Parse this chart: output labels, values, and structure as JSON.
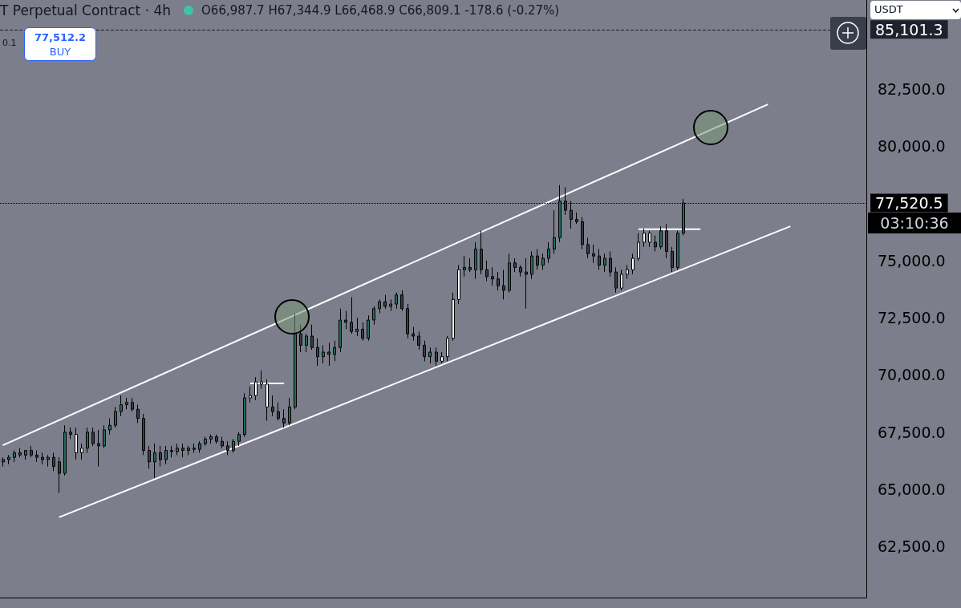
{
  "chart_data": {
    "type": "candlestick",
    "title": "T Perpetual Contract · 4h",
    "annotations": [
      "O66,987.7 H67,344.9 L66,468.9 C66,809.1 -178.6 (-0.27%)",
      "77,512.2",
      "BUY",
      "0.1",
      "USDT",
      "03:10:36"
    ],
    "categories": [
      null,
      null,
      null,
      null,
      null,
      null,
      null,
      null,
      null,
      null,
      null,
      null,
      null,
      null,
      null,
      null,
      null,
      null,
      null,
      null,
      null,
      null,
      null,
      null,
      null,
      null,
      null,
      null,
      null,
      null,
      null,
      null,
      null,
      null,
      null,
      null,
      null,
      null,
      null,
      null,
      null,
      null,
      null,
      null,
      null,
      null,
      null,
      null,
      null,
      null,
      null,
      null,
      null,
      null,
      null,
      null,
      null,
      null,
      null,
      null,
      null,
      null,
      null,
      null,
      null,
      null,
      null,
      null,
      null,
      null,
      null,
      null,
      null,
      null,
      null,
      null,
      null,
      null,
      null,
      null,
      null,
      null,
      null,
      null,
      null,
      null,
      null,
      null,
      null,
      null,
      null,
      null,
      null,
      null,
      null,
      null,
      null,
      null,
      null,
      null,
      null,
      null,
      null,
      null,
      null,
      null,
      null,
      null,
      null,
      null,
      null,
      null,
      null,
      null,
      null,
      null,
      null,
      null,
      null,
      null,
      null,
      null,
      null,
      null,
      null,
      null,
      null,
      null,
      null,
      null,
      null,
      null,
      null,
      null,
      null,
      null,
      null,
      null,
      null,
      null,
      null,
      null,
      null,
      null,
      null,
      null,
      null,
      null,
      null,
      null,
      null,
      null,
      null,
      null
    ],
    "ohlc": [
      [
        66200,
        66400,
        66000,
        66300
      ],
      [
        66300,
        66500,
        66100,
        66400
      ],
      [
        66400,
        66700,
        66200,
        66600
      ],
      [
        66600,
        66800,
        66400,
        66500
      ],
      [
        66500,
        66700,
        66300,
        66700
      ],
      [
        66700,
        66900,
        66400,
        66500
      ],
      [
        66500,
        66700,
        66200,
        66400
      ],
      [
        66400,
        66600,
        66100,
        66300
      ],
      [
        66300,
        66500,
        66000,
        66400
      ],
      [
        66400,
        66600,
        65800,
        66000
      ],
      [
        66200,
        66400,
        64850,
        65700
      ],
      [
        65700,
        67800,
        65600,
        67500
      ],
      [
        67500,
        67700,
        67200,
        67400
      ],
      [
        67400,
        67700,
        66300,
        66600
      ],
      [
        66600,
        67000,
        66300,
        66800
      ],
      [
        66800,
        67700,
        66600,
        67500
      ],
      [
        67500,
        67700,
        66900,
        67000
      ],
      [
        67000,
        67600,
        66000,
        66900
      ],
      [
        66900,
        67800,
        66800,
        67600
      ],
      [
        67600,
        68100,
        67400,
        67800
      ],
      [
        67800,
        68600,
        67700,
        68400
      ],
      [
        68400,
        69100,
        68200,
        68700
      ],
      [
        68700,
        69000,
        68500,
        68800
      ],
      [
        68800,
        69000,
        68400,
        68500
      ],
      [
        68500,
        68700,
        67900,
        68100
      ],
      [
        68100,
        68300,
        66500,
        66700
      ],
      [
        66700,
        66900,
        65900,
        66200
      ],
      [
        66200,
        67000,
        65500,
        66600
      ],
      [
        66600,
        66900,
        66000,
        66300
      ],
      [
        66300,
        66900,
        66100,
        66700
      ],
      [
        66700,
        66900,
        66400,
        66650
      ],
      [
        66650,
        67000,
        66500,
        66800
      ],
      [
        66800,
        67000,
        66400,
        66700
      ],
      [
        66700,
        66900,
        66500,
        66800
      ],
      [
        66800,
        67000,
        66600,
        66750
      ],
      [
        66750,
        67100,
        66600,
        67000
      ],
      [
        67000,
        67300,
        66900,
        67200
      ],
      [
        67200,
        67400,
        67000,
        67300
      ],
      [
        67300,
        67400,
        67000,
        67100
      ],
      [
        67100,
        67300,
        66800,
        66900
      ],
      [
        66900,
        67100,
        66500,
        66700
      ],
      [
        66700,
        67200,
        66600,
        67100
      ],
      [
        67100,
        67500,
        66900,
        67400
      ],
      [
        67400,
        69200,
        67300,
        69000
      ],
      [
        69000,
        69500,
        68800,
        69100
      ],
      [
        69100,
        69900,
        68900,
        69700
      ],
      [
        69700,
        70200,
        69400,
        69600
      ],
      [
        69600,
        69800,
        68000,
        68600
      ],
      [
        68600,
        69100,
        68200,
        68400
      ],
      [
        68400,
        68800,
        68000,
        68100
      ],
      [
        68100,
        68500,
        67700,
        67900
      ],
      [
        67900,
        69000,
        67800,
        68600
      ],
      [
        68600,
        72700,
        68500,
        71800
      ],
      [
        71800,
        72200,
        71000,
        71300
      ],
      [
        71300,
        71800,
        71000,
        71700
      ],
      [
        71700,
        72200,
        71100,
        71200
      ],
      [
        71200,
        71600,
        70400,
        70800
      ],
      [
        70800,
        71300,
        70500,
        71000
      ],
      [
        71000,
        71400,
        70400,
        70900
      ],
      [
        70900,
        71500,
        70600,
        71200
      ],
      [
        71200,
        72900,
        71000,
        72400
      ],
      [
        72400,
        72800,
        72000,
        72300
      ],
      [
        72300,
        73400,
        71800,
        71900
      ],
      [
        71900,
        72500,
        71700,
        72000
      ],
      [
        72000,
        72300,
        71500,
        71600
      ],
      [
        71600,
        72600,
        71500,
        72400
      ],
      [
        72400,
        73000,
        72200,
        72900
      ],
      [
        72900,
        73300,
        72700,
        73200
      ],
      [
        73200,
        73500,
        72900,
        73000
      ],
      [
        73000,
        73300,
        72800,
        73100
      ],
      [
        73100,
        73600,
        72900,
        73500
      ],
      [
        73500,
        73700,
        72800,
        72900
      ],
      [
        72900,
        73100,
        71600,
        71800
      ],
      [
        71800,
        72100,
        71500,
        71700
      ],
      [
        71700,
        71900,
        71100,
        71300
      ],
      [
        71300,
        71500,
        70600,
        70800
      ],
      [
        70800,
        71200,
        70500,
        71000
      ],
      [
        71000,
        71200,
        70400,
        70600
      ],
      [
        70600,
        71000,
        70500,
        70800
      ],
      [
        70800,
        71700,
        70600,
        71600
      ],
      [
        71600,
        73600,
        71500,
        73300
      ],
      [
        73300,
        74800,
        73100,
        74600
      ],
      [
        74600,
        75200,
        74300,
        74700
      ],
      [
        74700,
        75100,
        74500,
        74600
      ],
      [
        74600,
        75800,
        74200,
        75500
      ],
      [
        75500,
        76300,
        74400,
        74600
      ],
      [
        74600,
        75000,
        74100,
        74300
      ],
      [
        74300,
        74700,
        73900,
        74200
      ],
      [
        74200,
        74500,
        73700,
        73900
      ],
      [
        73900,
        74600,
        73300,
        73700
      ],
      [
        73700,
        75300,
        73600,
        74900
      ],
      [
        74900,
        75100,
        74500,
        74700
      ],
      [
        74700,
        74800,
        74300,
        74500
      ],
      [
        74500,
        75100,
        72900,
        74400
      ],
      [
        74400,
        75400,
        74200,
        75200
      ],
      [
        75200,
        75500,
        74600,
        74800
      ],
      [
        74800,
        75300,
        74600,
        75100
      ],
      [
        75100,
        75800,
        74900,
        75500
      ],
      [
        75500,
        77200,
        75300,
        76000
      ],
      [
        76000,
        78300,
        75800,
        77600
      ],
      [
        77600,
        78200,
        77000,
        77200
      ],
      [
        77200,
        77600,
        76400,
        76800
      ],
      [
        76800,
        77100,
        76600,
        76700
      ],
      [
        76700,
        76900,
        75500,
        75700
      ],
      [
        75700,
        76000,
        75100,
        75300
      ],
      [
        75300,
        75700,
        74900,
        75200
      ],
      [
        75200,
        75500,
        74600,
        74800
      ],
      [
        74800,
        75300,
        74500,
        75100
      ],
      [
        75100,
        75400,
        74300,
        74500
      ],
      [
        74500,
        74700,
        73600,
        73800
      ],
      [
        73800,
        74600,
        73700,
        74400
      ],
      [
        74400,
        74800,
        74200,
        74600
      ],
      [
        74600,
        75300,
        74400,
        75100
      ],
      [
        75100,
        76200,
        75000,
        75800
      ],
      [
        75800,
        76400,
        75600,
        76200
      ],
      [
        76200,
        76300,
        75600,
        75800
      ],
      [
        75800,
        76100,
        75400,
        75600
      ],
      [
        75600,
        76500,
        75500,
        76300
      ],
      [
        76300,
        76600,
        75100,
        75400
      ],
      [
        75400,
        75600,
        74500,
        74700
      ],
      [
        74700,
        76300,
        74600,
        76200
      ],
      [
        76200,
        77700,
        76100,
        77520.5
      ],
      null,
      null,
      null,
      null,
      null,
      null,
      null,
      null,
      null,
      null,
      null,
      null,
      null,
      null,
      null,
      null,
      null,
      null,
      null,
      null,
      null,
      null,
      null,
      null,
      null,
      null,
      null,
      null,
      null,
      null,
      null,
      null
    ],
    "colors": [
      "#1f6f5c",
      "#1f6f5c",
      "#1f6f5c",
      "#3a3d46",
      "#1f6f5c",
      "#3a3d46",
      "#3a3d46",
      "#3a3d46",
      "#1f6f5c",
      "#3a3d46",
      "#3a3d46",
      "#1f6f5c",
      "#3a3d46",
      "#ffffff",
      "#ffffff",
      "#1f6f5c",
      "#3a3d46",
      "#3a3d46",
      "#1f6f5c",
      "#1f6f5c",
      "#1f6f5c",
      "#1f6f5c",
      "#1f6f5c",
      "#3a3d46",
      "#3a3d46",
      "#3a3d46",
      "#3a3d46",
      "#1f6f5c",
      "#3a3d46",
      "#1f6f5c",
      "#3a3d46",
      "#1f6f5c",
      "#3a3d46",
      "#1f6f5c",
      "#3a3d46",
      "#1f6f5c",
      "#1f6f5c",
      "#1f6f5c",
      "#3a3d46",
      "#3a3d46",
      "#3a3d46",
      "#1f6f5c",
      "#1f6f5c",
      "#1f6f5c",
      "#ffffff",
      "#ffffff",
      "#ffffff",
      "#ffffff",
      "#3a3d46",
      "#3a3d46",
      "#3a3d46",
      "#1f6f5c",
      "#1f6f5c",
      "#3a3d46",
      "#1f6f5c",
      "#3a3d46",
      "#3a3d46",
      "#1f6f5c",
      "#3a3d46",
      "#1f6f5c",
      "#1f6f5c",
      "#3a3d46",
      "#3a3d46",
      "#1f6f5c",
      "#3a3d46",
      "#1f6f5c",
      "#1f6f5c",
      "#1f6f5c",
      "#3a3d46",
      "#1f6f5c",
      "#1f6f5c",
      "#3a3d46",
      "#3a3d46",
      "#3a3d46",
      "#3a3d46",
      "#3a3d46",
      "#1f6f5c",
      "#3a3d46",
      "#ffffff",
      "#ffffff",
      "#ffffff",
      "#ffffff",
      "#1f6f5c",
      "#3a3d46",
      "#1f6f5c",
      "#3a3d46",
      "#3a3d46",
      "#3a3d46",
      "#3a3d46",
      "#3a3d46",
      "#1f6f5c",
      "#3a3d46",
      "#3a3d46",
      "#3a3d46",
      "#1f6f5c",
      "#3a3d46",
      "#1f6f5c",
      "#1f6f5c",
      "#1f6f5c",
      "#1f6f5c",
      "#3a3d46",
      "#3a3d46",
      "#3a3d46",
      "#3a3d46",
      "#3a3d46",
      "#3a3d46",
      "#3a3d46",
      "#1f6f5c",
      "#3a3d46",
      "#3a3d46",
      "#ffffff",
      "#ffffff",
      "#ffffff",
      "#ffffff",
      "#ffffff",
      "#ffffff",
      "#3a3d46",
      "#1f6f5c",
      "#3a3d46",
      "#3a3d46",
      "#1f6f5c",
      "#1f6f5c",
      null,
      null,
      null,
      null,
      null,
      null,
      null,
      null,
      null,
      null,
      null,
      null,
      null,
      null,
      null,
      null,
      null,
      null,
      null,
      null,
      null,
      null,
      null,
      null,
      null,
      null,
      null,
      null,
      null,
      null,
      null,
      null
    ],
    "series": [
      {
        "type": "line",
        "color": "#ffffff",
        "values": [
          66930,
          null,
          null,
          null,
          null,
          null,
          null,
          null,
          null,
          null,
          null,
          null,
          null,
          null,
          null,
          null,
          null,
          null,
          null,
          null,
          null,
          null,
          null,
          null,
          null,
          null,
          null,
          null,
          null,
          null,
          null,
          null,
          null,
          null,
          null,
          null,
          null,
          null,
          null,
          null,
          null,
          null,
          null,
          null,
          null,
          null,
          null,
          null,
          null,
          null,
          null,
          null,
          null,
          null,
          null,
          null,
          null,
          null,
          null,
          null,
          null,
          null,
          null,
          null,
          null,
          null,
          null,
          null,
          null,
          null,
          null,
          null,
          null,
          null,
          null,
          null,
          null,
          null,
          null,
          null,
          null,
          null,
          null,
          null,
          null,
          null,
          null,
          null,
          null,
          null,
          null,
          null,
          null,
          null,
          null,
          null,
          null,
          null,
          null,
          null,
          null,
          null,
          null,
          null,
          null,
          null,
          null,
          null,
          null,
          null,
          null,
          null,
          null,
          null,
          null,
          null,
          null,
          null,
          null,
          null,
          null,
          null,
          null,
          null,
          null,
          null,
          null,
          null,
          null,
          null,
          null,
          null,
          null,
          null,
          null,
          null,
          81830,
          null,
          null,
          null,
          null,
          null,
          null,
          null,
          null,
          null,
          null,
          null,
          null,
          null,
          null,
          null,
          null,
          null
        ]
      },
      {
        "type": "line",
        "color": "#ffffff",
        "values": [
          null,
          null,
          null,
          null,
          null,
          null,
          null,
          null,
          null,
          null,
          63780,
          null,
          null,
          null,
          null,
          null,
          null,
          null,
          null,
          null,
          null,
          null,
          null,
          null,
          null,
          null,
          null,
          null,
          null,
          null,
          null,
          null,
          null,
          null,
          null,
          null,
          null,
          null,
          null,
          null,
          null,
          null,
          null,
          null,
          null,
          null,
          null,
          null,
          null,
          null,
          null,
          null,
          null,
          null,
          null,
          null,
          null,
          null,
          null,
          null,
          null,
          null,
          null,
          null,
          null,
          null,
          null,
          null,
          null,
          null,
          null,
          null,
          null,
          null,
          null,
          null,
          null,
          null,
          null,
          null,
          null,
          null,
          null,
          null,
          null,
          null,
          null,
          null,
          null,
          null,
          null,
          null,
          null,
          null,
          null,
          null,
          null,
          null,
          null,
          null,
          null,
          null,
          null,
          null,
          null,
          null,
          null,
          null,
          null,
          null,
          null,
          null,
          null,
          null,
          null,
          null,
          null,
          null,
          null,
          null,
          null,
          null,
          null,
          null,
          null,
          null,
          null,
          null,
          null,
          null,
          null,
          null,
          null,
          null,
          null,
          null,
          null,
          null,
          null,
          null,
          76500,
          null,
          null,
          null,
          null,
          null,
          null,
          null,
          null,
          null,
          null,
          null,
          null,
          null
        ]
      },
      {
        "type": "line",
        "color": "#ffffff",
        "values": [
          null,
          null,
          null,
          null,
          null,
          null,
          null,
          null,
          null,
          null,
          null,
          null,
          null,
          null,
          null,
          null,
          null,
          null,
          null,
          null,
          null,
          null,
          null,
          null,
          null,
          null,
          null,
          null,
          null,
          null,
          null,
          null,
          null,
          null,
          null,
          null,
          null,
          null,
          null,
          null,
          null,
          null,
          null,
          null,
          69630,
          null,
          null,
          null,
          null,
          null,
          69630,
          null,
          null,
          null,
          null,
          null,
          null,
          null,
          null,
          null,
          null,
          null,
          null,
          null,
          null,
          null,
          null,
          null,
          null,
          null,
          null,
          null,
          null,
          null,
          null,
          null,
          null,
          null,
          null,
          null,
          null,
          null,
          null,
          null,
          null,
          null,
          null,
          null,
          null,
          null,
          null,
          null,
          null,
          null,
          null,
          null,
          null,
          null,
          null,
          null,
          null,
          null,
          null,
          null,
          null,
          null,
          null,
          null,
          null,
          null,
          null,
          null,
          null,
          null,
          null,
          null,
          null,
          null,
          null,
          null,
          null,
          null,
          null,
          null,
          null,
          null,
          null,
          null,
          null,
          null,
          null,
          null,
          null,
          null,
          null,
          null,
          null,
          null,
          null,
          null,
          null,
          null,
          null,
          null,
          null,
          null,
          null,
          null,
          null,
          null,
          null,
          null,
          null,
          null
        ]
      },
      {
        "type": "line",
        "color": "#ffffff",
        "values": [
          null,
          null,
          null,
          null,
          null,
          null,
          null,
          null,
          null,
          null,
          null,
          null,
          null,
          null,
          null,
          null,
          null,
          null,
          null,
          null,
          null,
          null,
          null,
          null,
          null,
          null,
          null,
          null,
          null,
          null,
          null,
          null,
          null,
          null,
          null,
          null,
          null,
          null,
          null,
          null,
          null,
          null,
          null,
          null,
          null,
          null,
          null,
          null,
          null,
          null,
          null,
          null,
          null,
          null,
          null,
          null,
          null,
          null,
          null,
          null,
          null,
          null,
          null,
          null,
          null,
          null,
          null,
          null,
          null,
          null,
          null,
          null,
          null,
          null,
          null,
          null,
          null,
          null,
          null,
          null,
          null,
          null,
          null,
          null,
          null,
          null,
          null,
          null,
          null,
          null,
          null,
          null,
          null,
          null,
          null,
          null,
          null,
          null,
          null,
          null,
          null,
          null,
          null,
          null,
          null,
          null,
          null,
          null,
          null,
          null,
          null,
          null,
          null,
          76370,
          null,
          null,
          null,
          null,
          null,
          null,
          null,
          null,
          null,
          null,
          76370,
          null,
          null,
          null,
          null,
          null,
          null,
          null,
          null,
          null,
          null,
          null,
          null,
          null,
          null,
          null,
          null,
          null,
          null,
          null,
          null,
          null,
          null,
          null,
          null,
          null,
          null,
          null,
          null,
          null
        ]
      }
    ],
    "ylim": [
      60270,
      86390
    ],
    "yticks": [
      {
        "value": 62500,
        "label": "62,500.0"
      },
      {
        "value": 65000,
        "label": "65,000.0"
      },
      {
        "value": 67500,
        "label": "67,500.0"
      },
      {
        "value": 70000,
        "label": "70,000.0"
      },
      {
        "value": 72500,
        "label": "72,500.0"
      },
      {
        "value": 75000,
        "label": "75,000.0"
      },
      {
        "value": 77500,
        "label": null
      },
      {
        "value": 80000,
        "label": "80,000.0"
      },
      {
        "value": 82500,
        "label": "82,500.0"
      }
    ],
    "ref_lines": [
      {
        "axis": "y",
        "value": 85101.3,
        "label": "85,101.3",
        "color": "#1e222d",
        "line_style": "dashed"
      },
      {
        "axis": "y",
        "value": 77520.5,
        "label": "77,520.5",
        "color": "#000000",
        "line_style": "dotted"
      }
    ],
    "tick_labels": "y",
    "grid": false
  }
}
